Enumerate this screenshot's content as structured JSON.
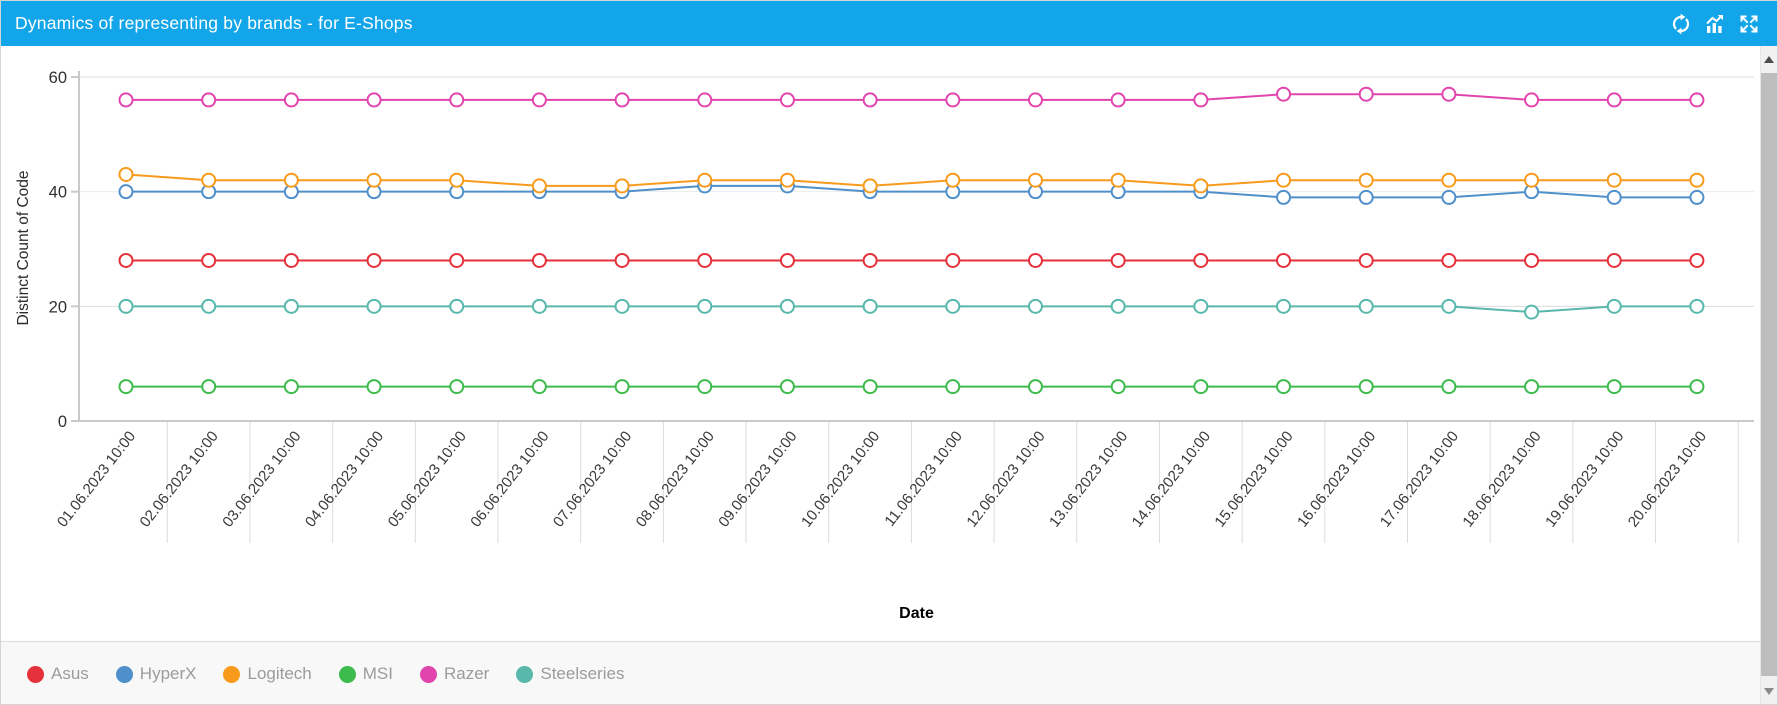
{
  "header": {
    "title": "Dynamics of representing by brands - for E-Shops",
    "icons": [
      "refresh",
      "chart",
      "maximize"
    ],
    "bg_color": "#12A5E9"
  },
  "chart_data": {
    "type": "line",
    "title": "Dynamics of representing by brands - for E-Shops",
    "xlabel": "Date",
    "ylabel": "Distinct Count of Code",
    "ylim": [
      0,
      60
    ],
    "yticks": [
      0,
      20,
      40,
      60
    ],
    "grid": true,
    "legend_position": "bottom",
    "marker_style": "open-circle",
    "x": [
      "01.06.2023 10:00",
      "02.06.2023 10:00",
      "03.06.2023 10:00",
      "04.06.2023 10:00",
      "05.06.2023 10:00",
      "06.06.2023 10:00",
      "07.06.2023 10:00",
      "08.06.2023 10:00",
      "09.06.2023 10:00",
      "10.06.2023 10:00",
      "11.06.2023 10:00",
      "12.06.2023 10:00",
      "13.06.2023 10:00",
      "14.06.2023 10:00",
      "15.06.2023 10:00",
      "16.06.2023 10:00",
      "17.06.2023 10:00",
      "18.06.2023 10:00",
      "19.06.2023 10:00",
      "20.06.2023 10:00"
    ],
    "series": [
      {
        "name": "Asus",
        "color": "#E5313B",
        "values": [
          28,
          28,
          28,
          28,
          28,
          28,
          28,
          28,
          28,
          28,
          28,
          28,
          28,
          28,
          28,
          28,
          28,
          28,
          28,
          28
        ]
      },
      {
        "name": "HyperX",
        "color": "#4F8FCA",
        "values": [
          40,
          40,
          40,
          40,
          40,
          40,
          40,
          41,
          41,
          40,
          40,
          40,
          40,
          40,
          39,
          39,
          39,
          40,
          39,
          39
        ]
      },
      {
        "name": "Logitech",
        "color": "#F89B1C",
        "values": [
          43,
          42,
          42,
          42,
          42,
          41,
          41,
          42,
          42,
          41,
          42,
          42,
          42,
          41,
          42,
          42,
          42,
          42,
          42,
          42
        ]
      },
      {
        "name": "MSI",
        "color": "#3DBB4D",
        "values": [
          6,
          6,
          6,
          6,
          6,
          6,
          6,
          6,
          6,
          6,
          6,
          6,
          6,
          6,
          6,
          6,
          6,
          6,
          6,
          6
        ]
      },
      {
        "name": "Razer",
        "color": "#E244AE",
        "values": [
          56,
          56,
          56,
          56,
          56,
          56,
          56,
          56,
          56,
          56,
          56,
          56,
          56,
          56,
          57,
          57,
          57,
          56,
          56,
          56
        ]
      },
      {
        "name": "Steelseries",
        "color": "#57B8AB",
        "values": [
          20,
          20,
          20,
          20,
          20,
          20,
          20,
          20,
          20,
          20,
          20,
          20,
          20,
          20,
          20,
          20,
          20,
          19,
          20,
          20
        ]
      }
    ]
  },
  "colors": {
    "header_bg": "#12A5E9",
    "axis_line": "#C9C9C9",
    "gridline": "#DCDCDC",
    "tick_label": "#2F2F2F",
    "x_label": "#3A3A3A",
    "legend_text": "#9B9B9B",
    "legend_bg": "#F8F8F8",
    "scrollbar_thumb": "#BDBDBD",
    "scrollbar_track": "#F1F1F1"
  }
}
